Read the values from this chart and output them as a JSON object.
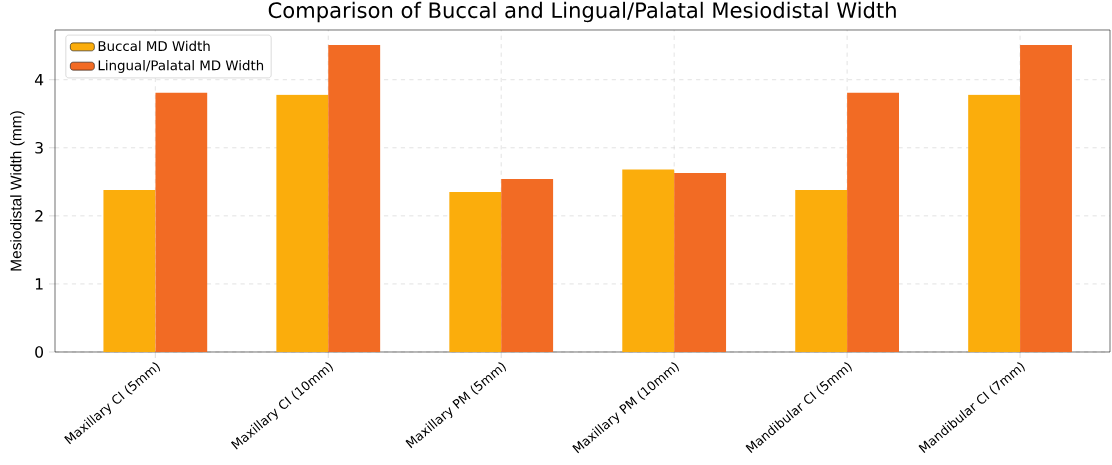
{
  "chart_data": {
    "type": "bar",
    "title": "Comparison of Buccal and Lingual/Palatal Mesiodistal Width",
    "ylabel": "Mesiodistal Width (mm)",
    "categories": [
      "Maxillary CI (5mm)",
      "Maxillary CI (10mm)",
      "Maxillary PM (5mm)",
      "Maxillary PM (10mm)",
      "Mandibular CI (5mm)",
      "Mandibular CI (7mm)"
    ],
    "series": [
      {
        "name": "Buccal MD Width",
        "color": "#fbad0c",
        "values": [
          2.38,
          3.78,
          2.35,
          2.68,
          2.38,
          3.78
        ]
      },
      {
        "name": "Lingual/Palatal MD Width",
        "color": "#f26b24",
        "values": [
          3.81,
          4.51,
          2.54,
          2.63,
          3.81,
          4.51
        ]
      }
    ],
    "ylim": [
      0,
      4.73
    ],
    "yticks": [
      0,
      1,
      2,
      3,
      4
    ],
    "grid": true,
    "legend": "top left"
  }
}
